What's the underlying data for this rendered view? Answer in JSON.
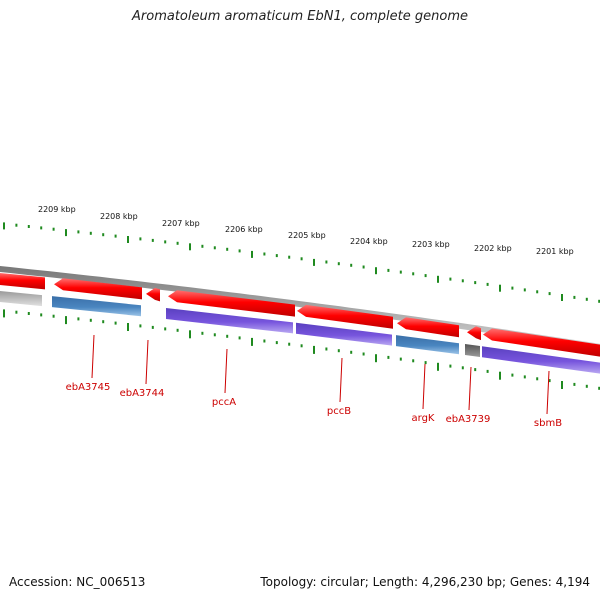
{
  "title": "Aromatoleum aromaticum EbN1, complete genome",
  "accession": "Accession: NC_006513",
  "summary": "Topology: circular; Length: 4,296,230 bp; Genes: 4,194",
  "colors": {
    "backbone": "#8a8a8a",
    "forward_gene": "#ff1010",
    "reverse_gene_blue": "#4a86c0",
    "reverse_gene_purple": "#7755dd",
    "reverse_gene_gray": "#666666",
    "ticks": "#1f8a1f",
    "label": "#cc0000"
  },
  "scale": {
    "labels": [
      "2209 kbp",
      "2208 kbp",
      "2207 kbp",
      "2206 kbp",
      "2205 kbp",
      "2204 kbp",
      "2203 kbp",
      "2202 kbp",
      "2201 kbp"
    ]
  },
  "genes": [
    "ebA3745",
    "ebA3744",
    "pccA",
    "pccB",
    "argK",
    "ebA3739",
    "sbmB"
  ]
}
